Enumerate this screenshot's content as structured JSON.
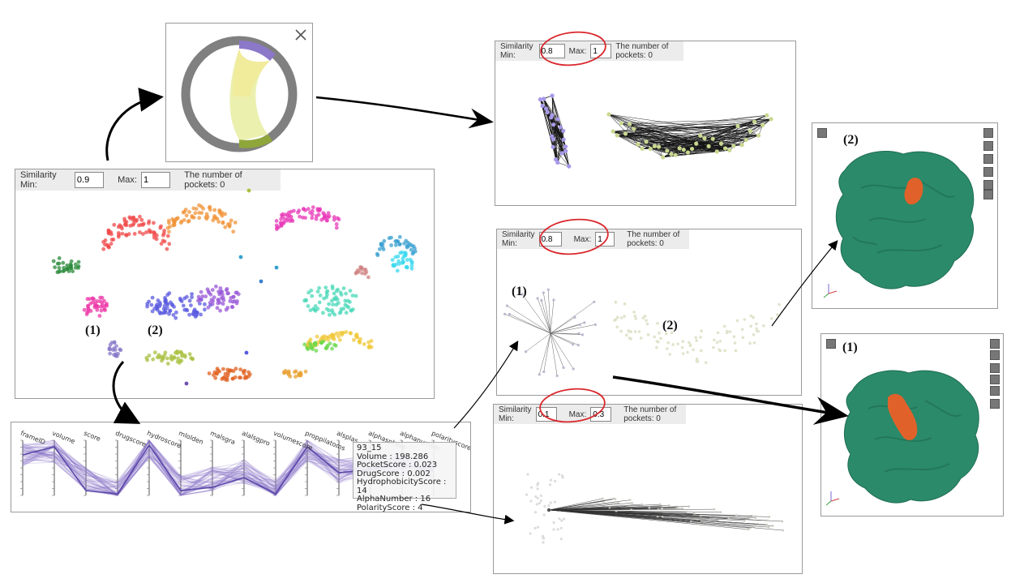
{
  "main_panel": {
    "sim_min_label": "Similarity Min:",
    "sim_min_value": "0.9",
    "max_label": "Max:",
    "max_value": "1",
    "pockets_label": "The number of pockets: 0",
    "label_1": "(1)",
    "label_2": "(2)"
  },
  "graph_top": {
    "sim_min_label": "Similarity Min:",
    "sim_min_value": "0.8",
    "max_label": "Max:",
    "max_value": "1",
    "pockets_label": "The number of pockets: 0"
  },
  "graph_mid": {
    "sim_min_label": "Similarity Min:",
    "sim_min_value": "0.8",
    "max_label": "Max:",
    "max_value": "1",
    "pockets_label": "The number of pockets: 0",
    "label_1": "(1)",
    "label_2": "(2)"
  },
  "graph_bottom": {
    "sim_min_label": "Similarity Min:",
    "sim_min_value": "0.1",
    "max_label": "Max:",
    "max_value": "0.3",
    "pockets_label": "The number of pockets: 0"
  },
  "viewer_top": {
    "label": "(2)"
  },
  "viewer_bottom": {
    "label": "(1)"
  },
  "parallel": {
    "axes": [
      "frameID",
      "volume",
      "score",
      "drugscore",
      "hydroscore",
      "mlolden",
      "malsgra",
      "alalsgpro",
      "volumescore",
      "proppilatoms",
      "alsplas",
      "alphasphere",
      "alphanumber",
      "polarityscore"
    ],
    "tooltip": [
      "93_15",
      "Volume : 198.286",
      "PocketScore : 0.023",
      "DrugScore : 0.002",
      "HydrophobicityScore : 14",
      "AlphaNumber : 16",
      "PolarityScore : 4"
    ]
  },
  "colors": {
    "chord_purple": "#8b78c8",
    "chord_green": "#8fa63a",
    "chord_ring": "#808080",
    "protein": "#2b8a6a",
    "pocket": "#e0622a",
    "annotation_red": "#d9262b"
  }
}
